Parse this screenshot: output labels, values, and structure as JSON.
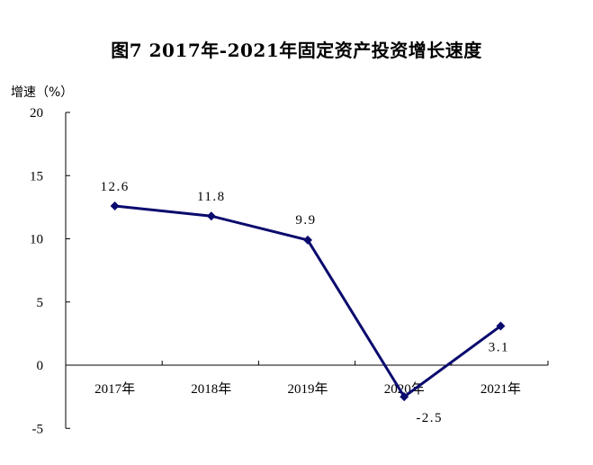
{
  "title": "图7   2017年-2021年固定资产投资增长速度",
  "ylabel": "增速（%）",
  "colors": {
    "line": "#0a0a6e",
    "axis": "#000000"
  },
  "chart_data": {
    "type": "line",
    "title": "图7 2017年-2021年固定资产投资增长速度",
    "xlabel": "",
    "ylabel": "增速（%）",
    "categories": [
      "2017年",
      "2018年",
      "2019年",
      "2020年",
      "2021年"
    ],
    "series": [
      {
        "name": "固定资产投资增长速度",
        "values": [
          12.6,
          11.8,
          9.9,
          -2.5,
          3.1
        ],
        "color": "#0a0a6e",
        "marker": "diamond"
      }
    ],
    "data_labels": [
      "12.6",
      "11.8",
      "9.9",
      "-2.5",
      "3.1"
    ],
    "yticks": [
      "20",
      "15",
      "10",
      "5",
      "0",
      "-5"
    ],
    "ylim": [
      -5,
      20
    ],
    "grid": false,
    "legend": null
  }
}
